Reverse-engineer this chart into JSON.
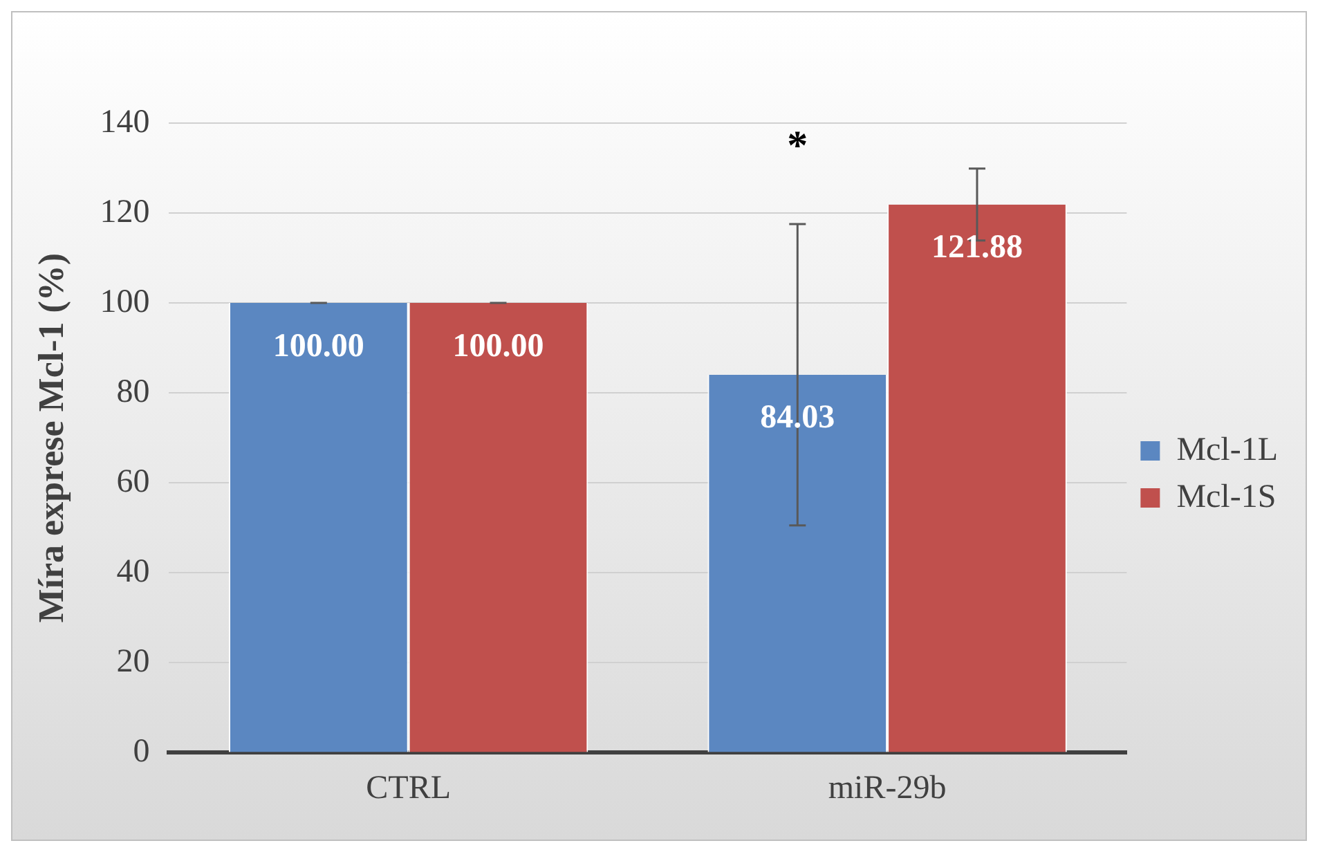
{
  "chart_data": {
    "type": "bar",
    "ylabel": "Míra exprese Mcl-1 (%)",
    "categories": [
      "CTRL",
      "miR-29b"
    ],
    "series": [
      {
        "name": "Mcl-1L",
        "color": "#5b87c1",
        "values": [
          100,
          84.03
        ],
        "errors": [
          0,
          33.5
        ],
        "value_labels": [
          "100.00",
          "84.03"
        ]
      },
      {
        "name": "Mcl-1S",
        "color": "#c0504d",
        "values": [
          100,
          121.88
        ],
        "errors": [
          0,
          8
        ],
        "value_labels": [
          "100.00",
          "121.88"
        ]
      }
    ],
    "ylim": [
      0,
      140
    ],
    "yticks": [
      0,
      20,
      40,
      60,
      80,
      100,
      120,
      140
    ],
    "grid": "y",
    "legend": "right",
    "annotations": [
      "*"
    ]
  }
}
